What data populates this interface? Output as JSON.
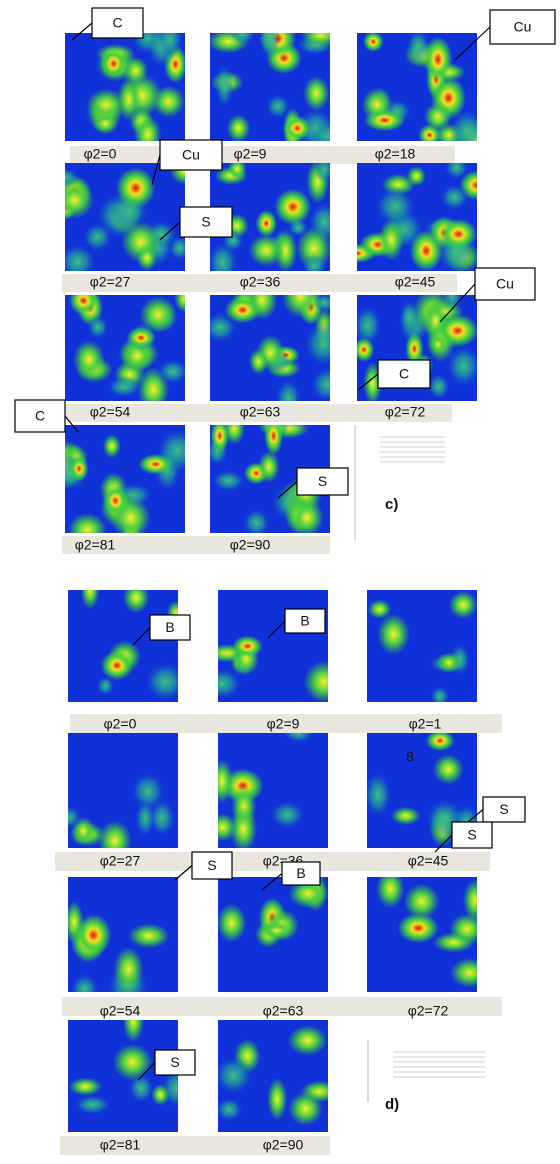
{
  "panels": [
    {
      "label": "c)",
      "sections": [
        "φ2=0",
        "φ2=9",
        "φ2=18",
        "φ2=27",
        "φ2=36",
        "φ2=45",
        "φ2=54",
        "φ2=63",
        "φ2=72",
        "φ2=81",
        "φ2=90"
      ],
      "markers": [
        "C",
        "Cu",
        "Cu",
        "S",
        "Cu",
        "C",
        "C",
        "S"
      ]
    },
    {
      "label": "d)",
      "sections": [
        "φ2=0",
        "φ2=9",
        "φ2=1",
        "8",
        "φ2=27",
        "φ2=36",
        "φ2=45",
        "φ2=54",
        "φ2=63",
        "φ2=72",
        "φ2=81",
        "φ2=90"
      ],
      "markers": [
        "B",
        "B",
        "S",
        "S",
        "B",
        "S",
        "S"
      ]
    }
  ]
}
